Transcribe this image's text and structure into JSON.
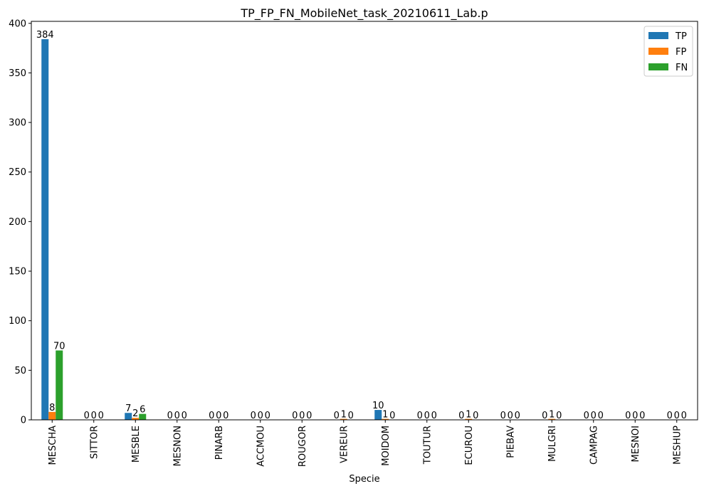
{
  "chart_data": {
    "type": "bar",
    "title": "TP_FP_FN_MobileNet_task_20210611_Lab.p",
    "xlabel": "Specie",
    "ylabel": "",
    "ylim": [
      0,
      402
    ],
    "yticks": [
      0,
      50,
      100,
      150,
      200,
      250,
      300,
      350,
      400
    ],
    "grid": false,
    "legend_position": "top-right",
    "categories": [
      "MESCHA",
      "SITTOR",
      "MESBLE",
      "MESNON",
      "PINARB",
      "ACCMOU",
      "ROUGOR",
      "VEREUR",
      "MOIDOM",
      "TOUTUR",
      "ECUROU",
      "PIEBAV",
      "MULGRI",
      "CAMPAG",
      "MESNOI",
      "MESHUP"
    ],
    "series": [
      {
        "name": "TP",
        "color": "#1f77b4",
        "values": [
          384,
          0,
          7,
          0,
          0,
          0,
          0,
          0,
          10,
          0,
          0,
          0,
          0,
          0,
          0,
          0
        ]
      },
      {
        "name": "FP",
        "color": "#ff7f0e",
        "values": [
          8,
          0,
          2,
          0,
          0,
          0,
          0,
          1,
          1,
          0,
          1,
          0,
          1,
          0,
          0,
          0
        ]
      },
      {
        "name": "FN",
        "color": "#2ca02c",
        "values": [
          70,
          0,
          6,
          0,
          0,
          0,
          0,
          0,
          0,
          0,
          0,
          0,
          0,
          0,
          0,
          0
        ]
      }
    ]
  }
}
